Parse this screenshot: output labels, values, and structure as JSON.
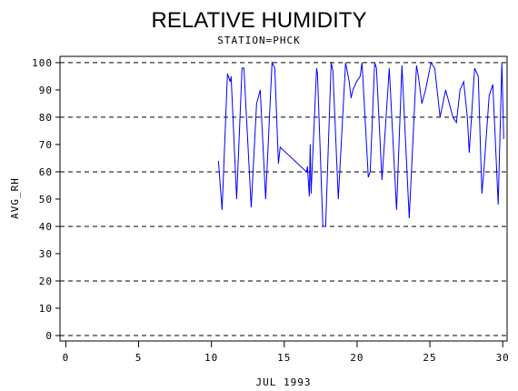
{
  "chart_data": {
    "type": "line",
    "title": "RELATIVE HUMIDITY",
    "subtitle": "STATION=PHCK",
    "x_label": "JUL 1993",
    "y_label": "AVG_RH",
    "xlim": [
      -0.4,
      30.3
    ],
    "xticks": [
      0,
      5,
      10,
      15,
      20,
      25,
      30
    ],
    "ylim": [
      -2,
      102.3
    ],
    "yticks": [
      0,
      10,
      20,
      30,
      40,
      50,
      60,
      70,
      80,
      90,
      100
    ],
    "grid": true,
    "series": [
      {
        "color": "#0000ff",
        "x": [
          10.48,
          10.73,
          11.1,
          11.29,
          11.35,
          11.73,
          12.1,
          12.23,
          12.73,
          13.1,
          13.35,
          13.72,
          14.16,
          14.35,
          14.6,
          14.72,
          16.53,
          16.59,
          16.72,
          16.78,
          16.84,
          17.22,
          17.28,
          17.65,
          17.84,
          18.22,
          18.34,
          18.71,
          19.21,
          19.46,
          19.59,
          19.71,
          19.96,
          20.21,
          20.34,
          20.77,
          20.9,
          21.21,
          21.33,
          21.71,
          22.21,
          22.71,
          23.08,
          23.58,
          24.08,
          24.21,
          24.45,
          24.7,
          25.08,
          25.33,
          25.7,
          26.08,
          26.33,
          26.58,
          26.82,
          27.07,
          27.32,
          27.57,
          27.7,
          28.07,
          28.32,
          28.57,
          28.7,
          29.07,
          29.32,
          29.69,
          29.94,
          30.07
        ],
        "values": [
          64,
          46,
          96,
          93,
          95,
          50,
          98,
          98,
          47,
          85,
          90,
          50,
          100,
          98,
          63,
          69,
          60,
          62,
          51,
          70,
          52,
          98,
          96,
          40,
          40,
          100,
          97,
          50,
          100,
          93,
          87,
          90,
          93,
          95,
          100,
          58,
          60,
          100,
          98,
          57,
          98,
          46,
          99,
          43,
          99,
          95,
          85,
          90,
          100,
          98,
          80,
          90,
          85,
          80,
          78,
          90,
          93,
          80,
          67,
          98,
          95,
          52,
          60,
          88,
          92,
          48,
          100,
          72
        ]
      }
    ]
  }
}
